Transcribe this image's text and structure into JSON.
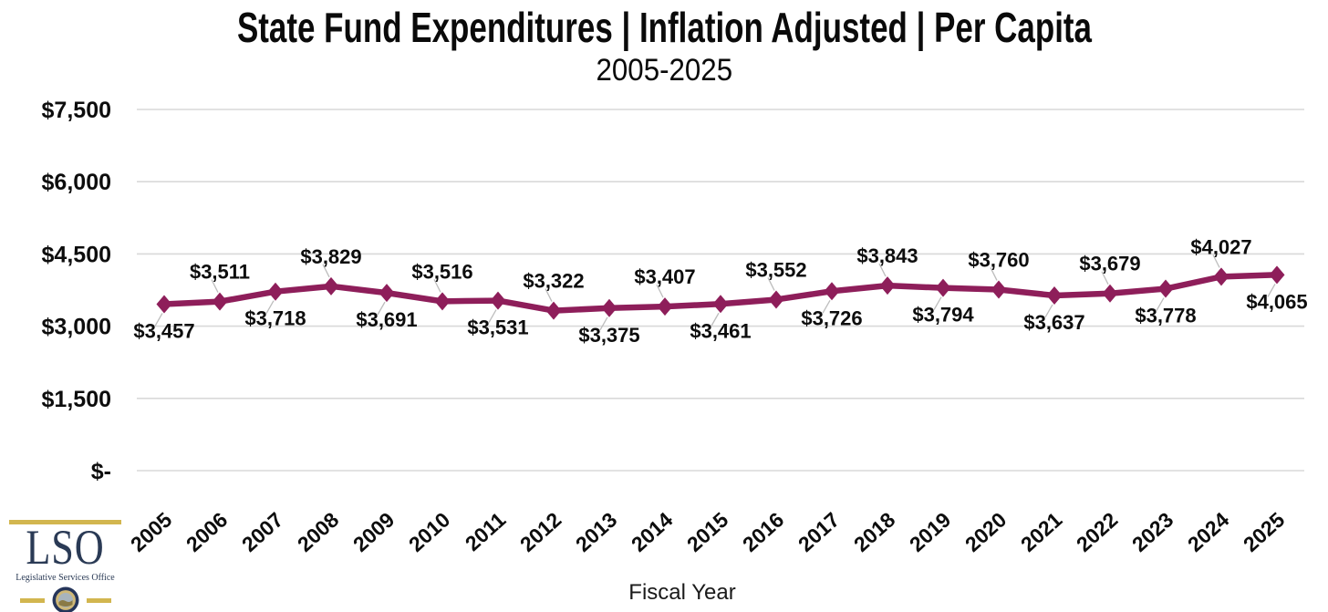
{
  "header": {
    "title": "State Fund Expenditures | Inflation Adjusted | Per Capita",
    "subtitle": "2005-2025"
  },
  "chart_data": {
    "type": "line",
    "title": "State Fund Expenditures | Inflation Adjusted | Per Capita",
    "subtitle": "2005-2025",
    "xlabel": "Fiscal Year",
    "ylabel": "",
    "categories": [
      "2005",
      "2006",
      "2007",
      "2008",
      "2009",
      "2010",
      "2011",
      "2012",
      "2013",
      "2014",
      "2015",
      "2016",
      "2017",
      "2018",
      "2019",
      "2020",
      "2021",
      "2022",
      "2023",
      "2024",
      "2025"
    ],
    "values": [
      3457,
      3511,
      3718,
      3829,
      3691,
      3516,
      3531,
      3322,
      3375,
      3407,
      3461,
      3552,
      3726,
      3843,
      3794,
      3760,
      3637,
      3679,
      3778,
      4027,
      4065
    ],
    "point_labels": [
      "$3,457",
      "$3,511",
      "$3,718",
      "$3,829",
      "$3,691",
      "$3,516",
      "$3,531",
      "$3,322",
      "$3,375",
      "$3,407",
      "$3,461",
      "$3,552",
      "$3,726",
      "$3,843",
      "$3,794",
      "$3,760",
      "$3,637",
      "$3,679",
      "$3,778",
      "$4,027",
      "$4,065"
    ],
    "y_ticks": [
      {
        "label": "$7,500",
        "value": 7500
      },
      {
        "label": "$6,000",
        "value": 6000
      },
      {
        "label": "$4,500",
        "value": 4500
      },
      {
        "label": "$3,000",
        "value": 3000
      },
      {
        "label": "$1,500",
        "value": 1500
      },
      {
        "label": "$-",
        "value": 0
      }
    ],
    "ylim": [
      0,
      7500
    ],
    "grid": "horizontal",
    "legend": "none",
    "marker": "diamond"
  },
  "logo": {
    "acronym": "LSO",
    "name": "Legislative Services Office",
    "seal_icon": "state-seal"
  },
  "colors": {
    "line": "#8E1E5A",
    "grid": "#D9D9D9",
    "leader": "#BDBDBD",
    "gold": "#D2B64F",
    "navy": "#2A3A55",
    "seal_tan": "#CFB878"
  }
}
